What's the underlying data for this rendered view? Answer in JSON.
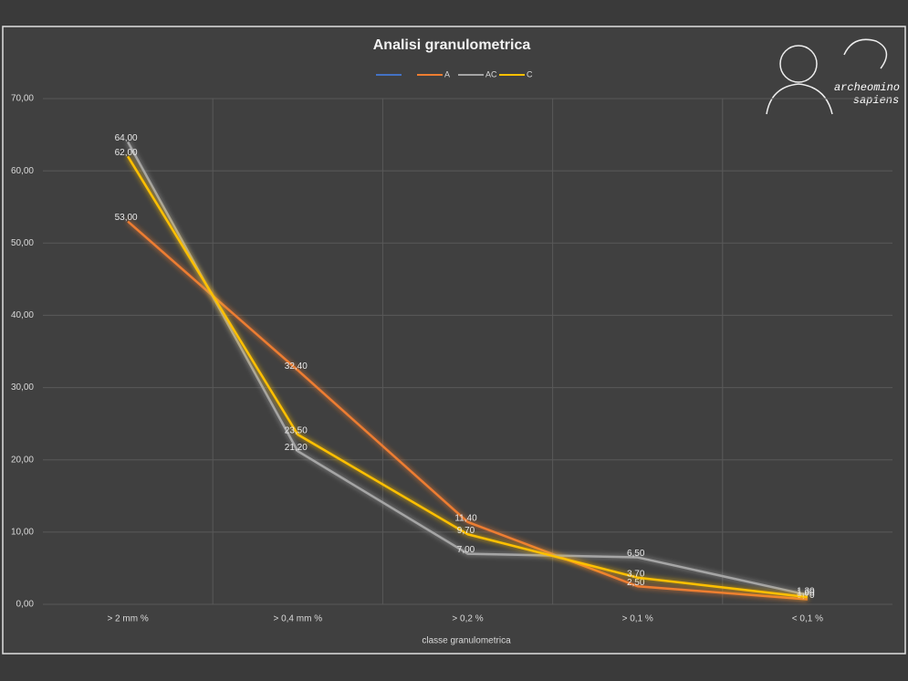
{
  "chart_data": {
    "type": "line",
    "title": "Analisi granulometrica",
    "x_label": "classe granulometrica",
    "categories": [
      "> 2 mm %",
      "> 0,4 mm %",
      "> 0,2 %",
      "> 0,1 %",
      "< 0,1 %"
    ],
    "series": [
      {
        "color": "#4472c4",
        "values": [
          null,
          null,
          null,
          null,
          null
        ]
      },
      {
        "name": "A",
        "color": "#ed7d31",
        "values": [
          53,
          32.4,
          11.4,
          2.5,
          0.7
        ],
        "value_labels": [
          "53,00",
          "32,40",
          "11,40",
          "2,50",
          "0,70"
        ]
      },
      {
        "name": "AC",
        "color": "#a5a5a5",
        "values": [
          64,
          21.2,
          7,
          6.5,
          1.3
        ],
        "value_labels": [
          "64,00",
          "21,20",
          "7,00",
          "6,50",
          "1,30"
        ]
      },
      {
        "name": "C",
        "color": "#ffc000",
        "values": [
          62,
          23.5,
          9.7,
          3.7,
          1
        ],
        "value_labels": [
          "62,00",
          "23,50",
          "9,70",
          "3,70",
          "1,00"
        ]
      }
    ],
    "ylim": [
      0,
      70
    ],
    "yticks": [
      {
        "value": 0,
        "label": "0,00"
      },
      {
        "value": 10,
        "label": "10,00"
      },
      {
        "value": 20,
        "label": "20,00"
      },
      {
        "value": 30,
        "label": "30,00"
      },
      {
        "value": 40,
        "label": "40,00"
      },
      {
        "value": 50,
        "label": "50,00"
      },
      {
        "value": 60,
        "label": "60,00"
      },
      {
        "value": 70,
        "label": "70,00"
      }
    ],
    "grid": true,
    "legend": "top"
  },
  "logo": {
    "line1": "archeomino",
    "line2": "sapiens"
  }
}
